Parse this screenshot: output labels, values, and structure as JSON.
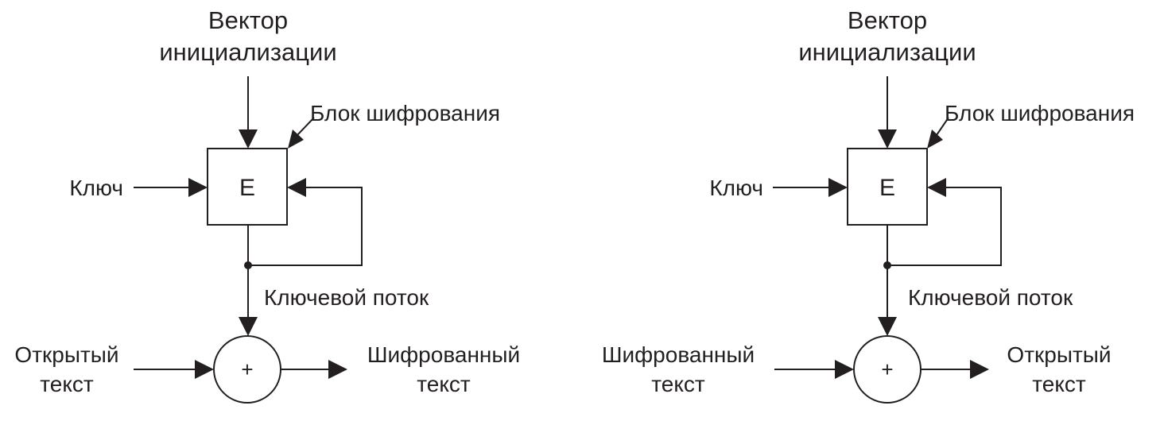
{
  "diagrams": [
    {
      "iv_line1": "Вектор",
      "iv_line2": "инициализации",
      "block_label": "Блок шифрования",
      "block_letter": "E",
      "key_label": "Ключ",
      "keystream_label": "Ключевой поток",
      "xor_symbol": "+",
      "input_line1": "Открытый",
      "input_line2": "текст",
      "output_line1": "Шифрованный",
      "output_line2": "текст"
    },
    {
      "iv_line1": "Вектор",
      "iv_line2": "инициализации",
      "block_label": "Блок шифрования",
      "block_letter": "E",
      "key_label": "Ключ",
      "keystream_label": "Ключевой поток",
      "xor_symbol": "+",
      "input_line1": "Шифрованный",
      "input_line2": "текст",
      "output_line1": "Открытый",
      "output_line2": "текст"
    }
  ]
}
